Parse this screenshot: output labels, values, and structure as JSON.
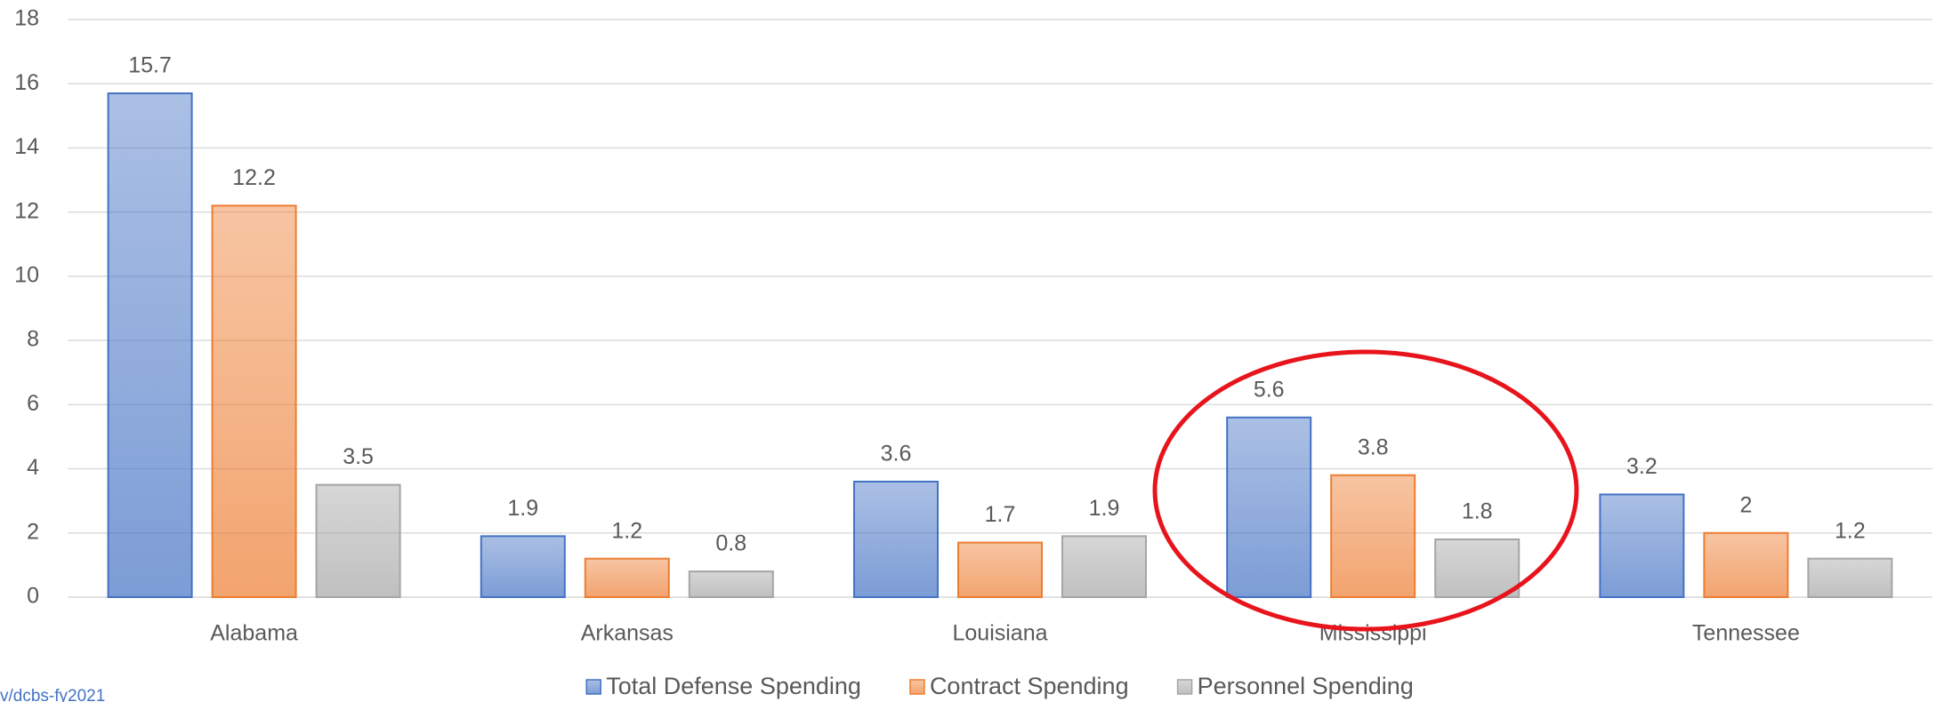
{
  "chart_data": {
    "type": "bar",
    "categories": [
      "Alabama",
      "Arkansas",
      "Louisiana",
      "Mississippi",
      "Tennessee"
    ],
    "series": [
      {
        "name": "Total Defense Spending",
        "color": "#4472c4",
        "values": [
          15.7,
          1.9,
          3.6,
          5.6,
          3.2
        ]
      },
      {
        "name": "Contract Spending",
        "color": "#ed7d31",
        "values": [
          12.2,
          1.2,
          1.7,
          3.8,
          2
        ]
      },
      {
        "name": "Personnel Spending",
        "color": "#a5a5a5",
        "values": [
          3.5,
          0.8,
          1.9,
          1.8,
          1.2
        ]
      }
    ],
    "ylim": [
      0,
      18
    ],
    "yticks": [
      0,
      2,
      4,
      6,
      8,
      10,
      12,
      14,
      16,
      18
    ],
    "grid": true,
    "legend": "bottom",
    "source": "v/dcbs-fy2021"
  }
}
